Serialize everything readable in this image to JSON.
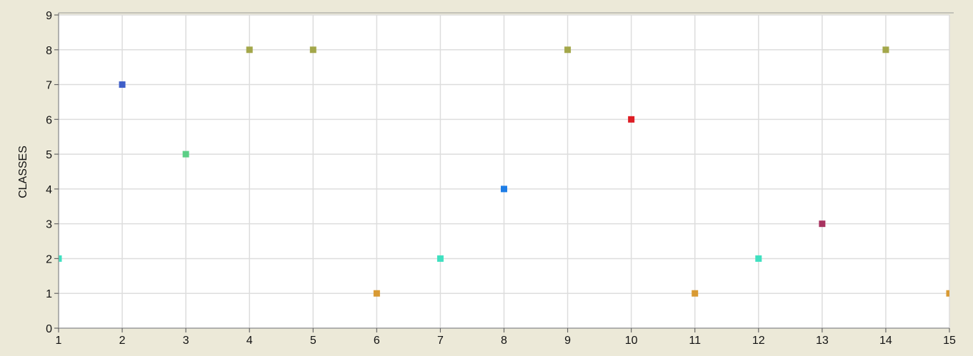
{
  "chart_data": {
    "type": "scatter",
    "title": "",
    "xlabel": "",
    "ylabel": "CLASSES",
    "xlim": [
      1,
      15
    ],
    "ylim": [
      0,
      9
    ],
    "xticks": [
      1,
      2,
      3,
      4,
      5,
      6,
      7,
      8,
      9,
      10,
      11,
      12,
      13,
      14,
      15
    ],
    "yticks": [
      0,
      1,
      2,
      3,
      4,
      5,
      6,
      7,
      8,
      9
    ],
    "grid": true,
    "legend": "none",
    "background_color": "#ece9d8",
    "plot_area_color": "#ffffff",
    "grid_color": "#dddddd",
    "axis_color": "#9a9a9a",
    "marker_shape": "square",
    "points": [
      {
        "x": 1,
        "y": 2,
        "color": "#40e0c0"
      },
      {
        "x": 2,
        "y": 7,
        "color": "#3f5ec8"
      },
      {
        "x": 3,
        "y": 5,
        "color": "#5ccf86"
      },
      {
        "x": 4,
        "y": 8,
        "color": "#a3a74a"
      },
      {
        "x": 5,
        "y": 8,
        "color": "#a3a74a"
      },
      {
        "x": 6,
        "y": 1,
        "color": "#d89a34"
      },
      {
        "x": 7,
        "y": 2,
        "color": "#40e0c0"
      },
      {
        "x": 8,
        "y": 4,
        "color": "#1e7de6"
      },
      {
        "x": 9,
        "y": 8,
        "color": "#a3a74a"
      },
      {
        "x": 10,
        "y": 6,
        "color": "#dd1d24"
      },
      {
        "x": 11,
        "y": 1,
        "color": "#d89a34"
      },
      {
        "x": 12,
        "y": 2,
        "color": "#40e0c0"
      },
      {
        "x": 13,
        "y": 3,
        "color": "#a83360"
      },
      {
        "x": 14,
        "y": 8,
        "color": "#a3a74a"
      },
      {
        "x": 15,
        "y": 1,
        "color": "#d89a34"
      }
    ]
  }
}
